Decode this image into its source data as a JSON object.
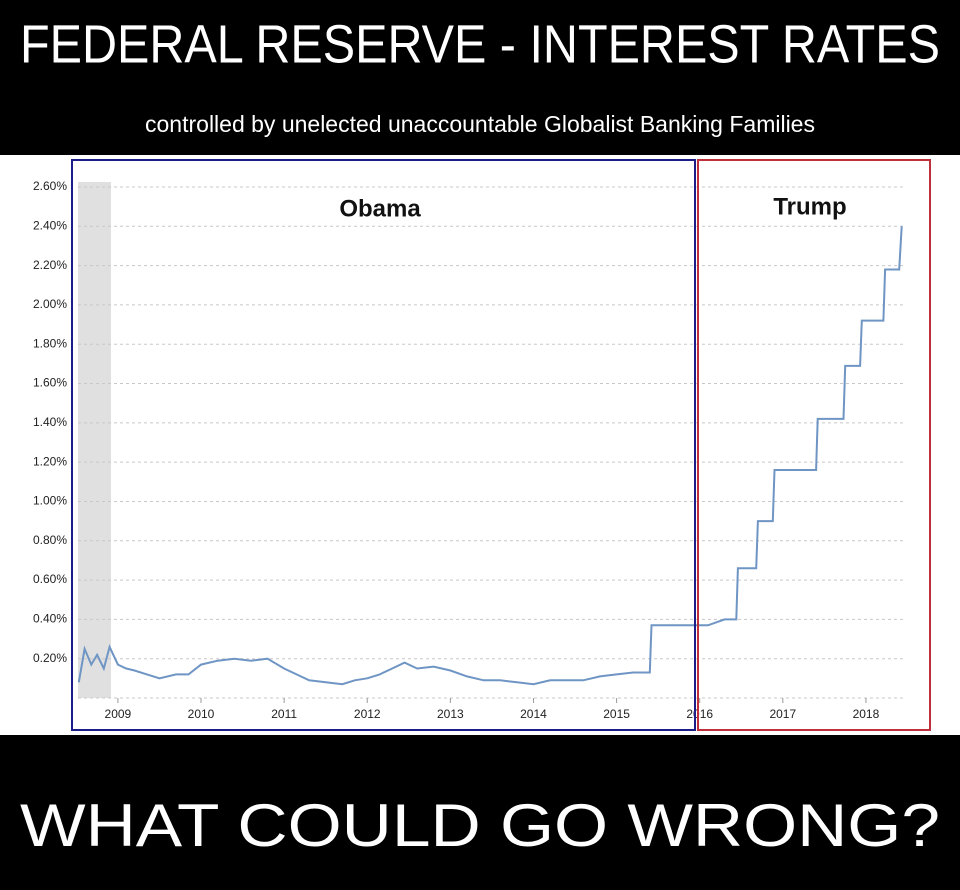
{
  "chart_data": {
    "type": "line",
    "title": "FEDERAL RESERVE - INTEREST RATES",
    "subtitle": "controlled by unelected unaccountable Globalist Banking Families",
    "caption": "WHAT COULD GO WRONG?",
    "annotations": [
      "Obama",
      "Trump"
    ],
    "color": "#6f95c4",
    "grid": true,
    "x": [
      2008.53,
      2008.6,
      2008.68,
      2008.75,
      2008.83,
      2008.9,
      2009.0,
      2009.1,
      2009.2,
      2009.35,
      2009.5,
      2009.7,
      2009.85,
      2010.0,
      2010.2,
      2010.4,
      2010.6,
      2010.8,
      2011.0,
      2011.15,
      2011.3,
      2011.5,
      2011.7,
      2011.85,
      2012.0,
      2012.15,
      2012.3,
      2012.45,
      2012.6,
      2012.8,
      2013.0,
      2013.2,
      2013.4,
      2013.6,
      2013.8,
      2014.0,
      2014.2,
      2014.4,
      2014.6,
      2014.8,
      2015.0,
      2015.2,
      2015.4,
      2015.42,
      2015.6,
      2015.9,
      2016.1,
      2016.3,
      2016.44,
      2016.46,
      2016.68,
      2016.7,
      2016.88,
      2016.9,
      2017.4,
      2017.42,
      2017.73,
      2017.75,
      2017.93,
      2017.95,
      2018.21,
      2018.23,
      2018.4,
      2018.43
    ],
    "values": [
      0.08,
      0.25,
      0.17,
      0.22,
      0.15,
      0.26,
      0.17,
      0.15,
      0.14,
      0.12,
      0.1,
      0.12,
      0.12,
      0.17,
      0.19,
      0.2,
      0.19,
      0.2,
      0.15,
      0.12,
      0.09,
      0.08,
      0.07,
      0.09,
      0.1,
      0.12,
      0.15,
      0.18,
      0.15,
      0.16,
      0.14,
      0.11,
      0.09,
      0.09,
      0.08,
      0.07,
      0.09,
      0.09,
      0.09,
      0.11,
      0.12,
      0.13,
      0.13,
      0.37,
      0.37,
      0.37,
      0.37,
      0.4,
      0.4,
      0.66,
      0.66,
      0.9,
      0.9,
      1.16,
      1.16,
      1.42,
      1.42,
      1.69,
      1.69,
      1.92,
      1.92,
      2.18,
      2.18,
      2.4
    ],
    "xlim": [
      2008.52,
      2018.47
    ],
    "xticks": [
      2009,
      2010,
      2011,
      2012,
      2013,
      2014,
      2015,
      2016,
      2017,
      2018
    ],
    "ylim": [
      0,
      2.6
    ],
    "yticks": [
      {
        "value": 0.2,
        "label": "0.20%"
      },
      {
        "value": 0.4,
        "label": "0.40%"
      },
      {
        "value": 0.6,
        "label": "0.60%"
      },
      {
        "value": 0.8,
        "label": "0.80%"
      },
      {
        "value": 1.0,
        "label": "1.00%"
      },
      {
        "value": 1.2,
        "label": "1.20%"
      },
      {
        "value": 1.4,
        "label": "1.40%"
      },
      {
        "value": 1.6,
        "label": "1.60%"
      },
      {
        "value": 1.8,
        "label": "1.80%"
      },
      {
        "value": 2.0,
        "label": "2.00%"
      },
      {
        "value": 2.2,
        "label": "2.20%"
      },
      {
        "value": 2.4,
        "label": "2.40%"
      },
      {
        "value": 2.6,
        "label": "2.60%"
      }
    ]
  }
}
